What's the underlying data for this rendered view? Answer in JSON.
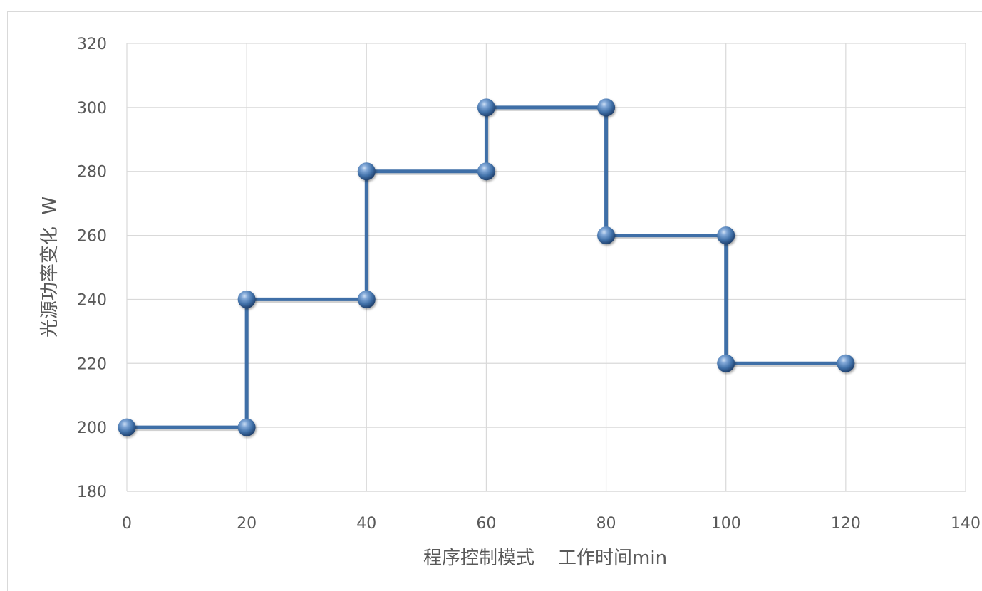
{
  "chart_data": {
    "type": "line",
    "step": true,
    "xlabel": "程序控制模式    工作时间min",
    "ylabel": "光源功率变化  W",
    "xlim": [
      0,
      140
    ],
    "ylim": [
      180,
      320
    ],
    "x_ticks": [
      0,
      20,
      40,
      60,
      80,
      100,
      120,
      140
    ],
    "y_ticks": [
      180,
      200,
      220,
      240,
      260,
      280,
      300,
      320
    ],
    "grid": true,
    "legend": "none",
    "series": [
      {
        "color": "#3f6fa7",
        "points": [
          {
            "x": 0,
            "y": 200
          },
          {
            "x": 20,
            "y": 200
          },
          {
            "x": 20,
            "y": 240
          },
          {
            "x": 40,
            "y": 240
          },
          {
            "x": 40,
            "y": 280
          },
          {
            "x": 60,
            "y": 280
          },
          {
            "x": 60,
            "y": 300
          },
          {
            "x": 80,
            "y": 300
          },
          {
            "x": 80,
            "y": 260
          },
          {
            "x": 100,
            "y": 260
          },
          {
            "x": 100,
            "y": 220
          },
          {
            "x": 120,
            "y": 220
          }
        ]
      }
    ]
  }
}
